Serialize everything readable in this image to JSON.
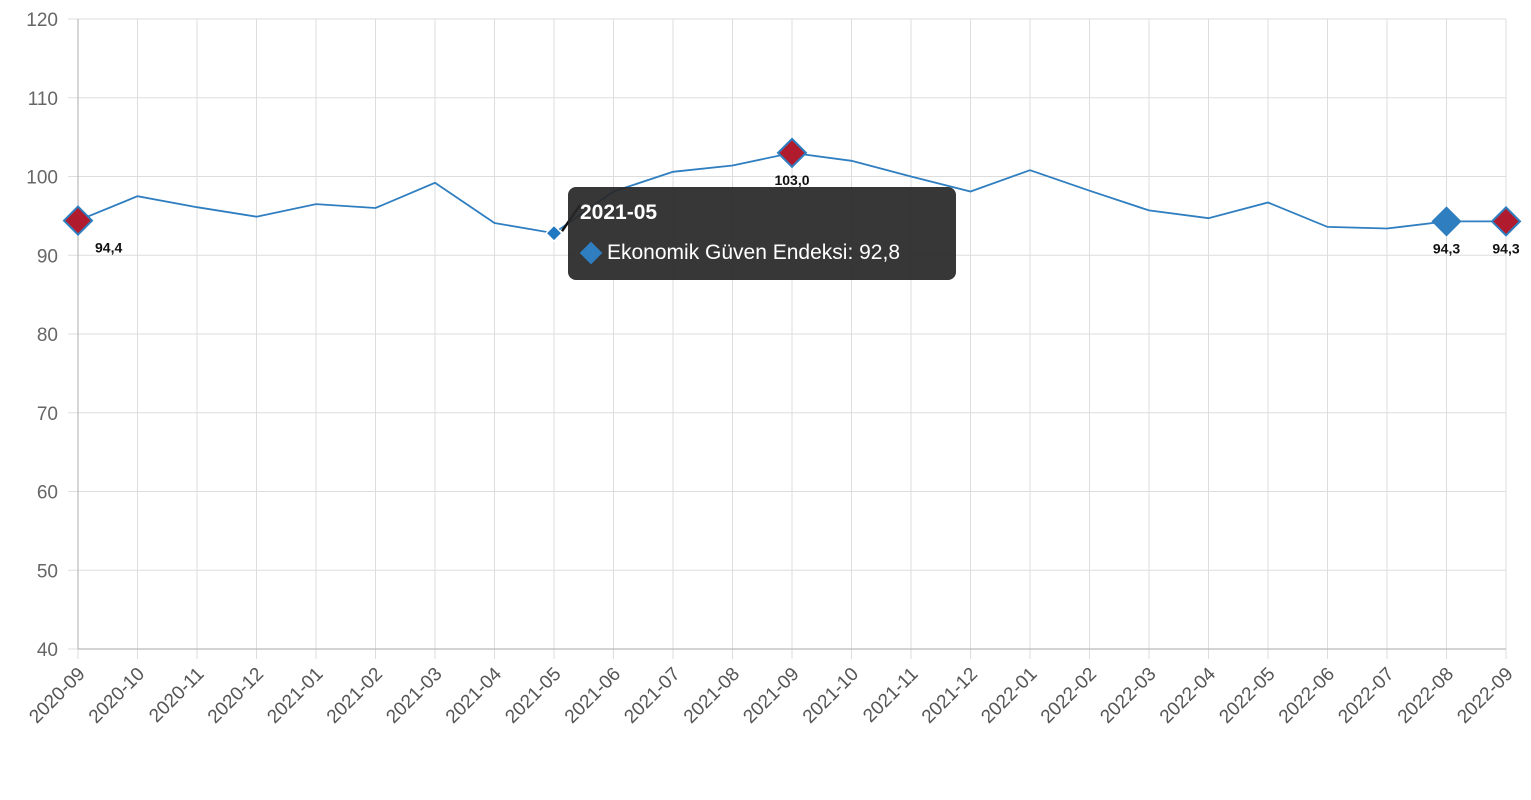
{
  "chart_data": {
    "type": "line",
    "categories": [
      "2020-09",
      "2020-10",
      "2020-11",
      "2020-12",
      "2021-01",
      "2021-02",
      "2021-03",
      "2021-04",
      "2021-05",
      "2021-06",
      "2021-07",
      "2021-08",
      "2021-09",
      "2021-10",
      "2021-11",
      "2021-12",
      "2022-01",
      "2022-02",
      "2022-03",
      "2022-04",
      "2022-05",
      "2022-06",
      "2022-07",
      "2022-08",
      "2022-09"
    ],
    "series": [
      {
        "name": "Ekonomik Güven Endeksi",
        "values": [
          94.4,
          97.5,
          96.1,
          94.9,
          96.5,
          96.0,
          99.2,
          94.1,
          92.8,
          98.1,
          100.6,
          101.4,
          103.0,
          102.0,
          100.0,
          98.1,
          100.8,
          98.2,
          95.7,
          94.7,
          96.7,
          93.6,
          93.4,
          94.3,
          94.3
        ],
        "color": "#2f7ec0"
      }
    ],
    "ylim": [
      40,
      120
    ],
    "yticks": [
      "40",
      "50",
      "60",
      "70",
      "80",
      "90",
      "100",
      "110",
      "120"
    ],
    "grid": true,
    "highlight_color": "#b01c2e",
    "highlights": [
      {
        "index": 0,
        "label": "94,4",
        "label_position": "right-below"
      },
      {
        "index": 12,
        "label": "103,0",
        "label_position": "below"
      },
      {
        "index": 23,
        "label": "94,3",
        "label_position": "below",
        "style": "plain"
      },
      {
        "index": 24,
        "label": "94,3",
        "label_position": "below"
      }
    ]
  },
  "tooltip": {
    "title": "2021-05",
    "body": "Ekonomik Güven Endeksi: 92,8",
    "index": 8
  }
}
